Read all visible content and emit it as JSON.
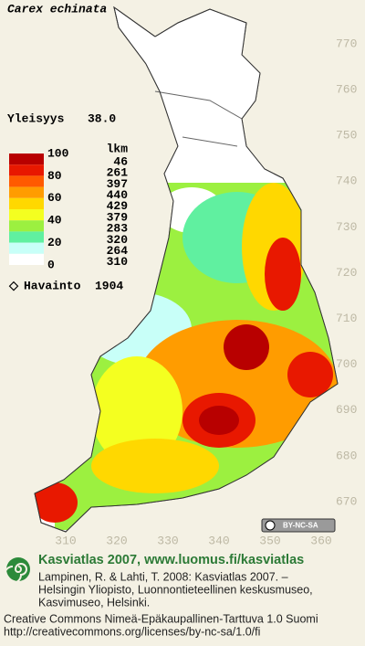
{
  "title": "Carex echinata",
  "frequency": {
    "label": "Yleisyys",
    "value": "38.0"
  },
  "legend": {
    "unit": "lkm",
    "scale_labels": [
      100,
      80,
      60,
      40,
      20,
      0
    ],
    "counts": [
      46,
      261,
      397,
      440,
      429,
      379,
      283,
      320,
      264,
      310
    ],
    "colors": [
      "#b80000",
      "#e81800",
      "#ff5a00",
      "#ff9c00",
      "#ffd800",
      "#f4ff20",
      "#9cf040",
      "#60f0a0",
      "#c8fff8",
      "#ffffff"
    ]
  },
  "observations": {
    "label": "Havainto",
    "count": 1904
  },
  "grid_y": [
    770,
    760,
    750,
    740,
    730,
    720,
    710,
    700,
    690,
    680,
    670
  ],
  "grid_x": [
    310,
    320,
    330,
    340,
    350,
    360
  ],
  "license_badge": "BY-NC-SA",
  "footer": {
    "heading": "Kasviatlas 2007, www.luomus.fi/kasviatlas",
    "citation": [
      "Lampinen, R. & Lahti, T. 2008: Kasviatlas 2007. –",
      "Helsingin Yliopisto, Luonnontieteellinen keskusmuseo,",
      "Kasvimuseo, Helsinki."
    ],
    "license": [
      "Creative Commons Nimeä-Epäkaupallinen-Tarttuva 1.0 Suomi",
      "http://creativecommons.org/licenses/by-nc-sa/1.0/fi"
    ]
  }
}
